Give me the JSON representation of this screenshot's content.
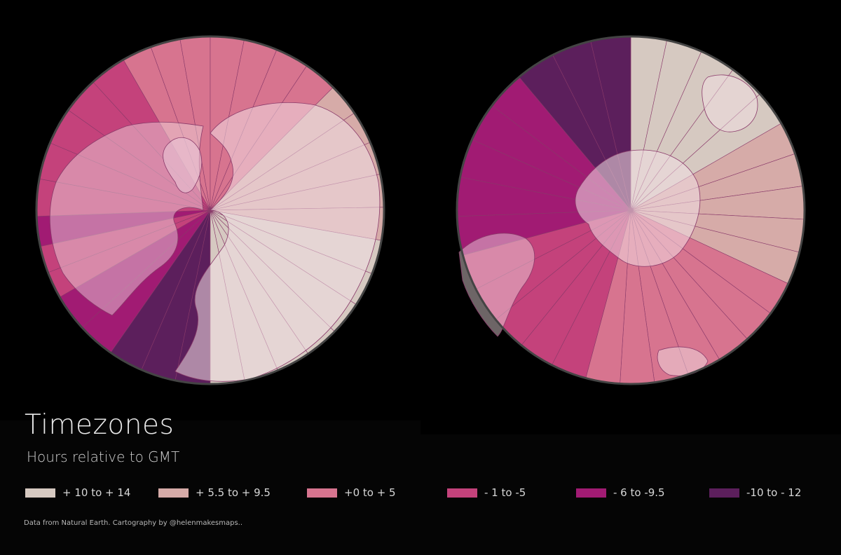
{
  "title": "Timezones",
  "subtitle": "Hours relative to GMT",
  "credit": "Data from Natural Earth. Cartography by @helenmakesmaps..",
  "colors": {
    "background": "#050505",
    "ocean": "#000000",
    "zone_10_14": "#d6c9c1",
    "zone_55_95": "#d6aba8",
    "zone_0_5": "#d7748f",
    "zone_m1_m5": "#c4427b",
    "zone_m6_m95": "#a11b73",
    "zone_m10_m12": "#5c1f5c",
    "land_tint": "#f0dde2",
    "boundary": "#8a3a6a"
  },
  "legend": [
    {
      "label": "+ 10 to + 14",
      "color": "#d6c9c1"
    },
    {
      "label": "+ 5.5 to + 9.5",
      "color": "#d6aba8"
    },
    {
      "label": "+0 to + 5",
      "color": "#d7748f"
    },
    {
      "label": "- 1 to -5",
      "color": "#c4427b"
    },
    {
      "label": "- 6 to -9.5",
      "color": "#a11b73"
    },
    {
      "label": "-10 to - 12",
      "color": "#5c1f5c"
    }
  ],
  "maps": [
    {
      "name": "north-pole",
      "sectors": [
        {
          "band": "zone_m10_m12",
          "from": 180,
          "to": 215
        },
        {
          "band": "zone_m6_m95",
          "from": 215,
          "to": 240
        },
        {
          "band": "zone_m1_m5",
          "from": 240,
          "to": 258
        },
        {
          "band": "zone_m6_m95",
          "from": 258,
          "to": 268
        },
        {
          "band": "zone_m1_m5",
          "from": 268,
          "to": 330
        },
        {
          "band": "zone_0_5",
          "from": 330,
          "to": 360
        },
        {
          "band": "zone_0_5",
          "from": 0,
          "to": 45
        },
        {
          "band": "zone_55_95",
          "from": 45,
          "to": 100
        },
        {
          "band": "zone_10_14",
          "from": 100,
          "to": 180
        }
      ]
    },
    {
      "name": "south-pole",
      "sectors": [
        {
          "band": "zone_10_14",
          "from": 0,
          "to": 60
        },
        {
          "band": "zone_55_95",
          "from": 60,
          "to": 115
        },
        {
          "band": "zone_0_5",
          "from": 115,
          "to": 195
        },
        {
          "band": "zone_m1_m5",
          "from": 195,
          "to": 255
        },
        {
          "band": "zone_m6_m95",
          "from": 255,
          "to": 320
        },
        {
          "band": "zone_m10_m12",
          "from": 320,
          "to": 360
        }
      ]
    }
  ]
}
